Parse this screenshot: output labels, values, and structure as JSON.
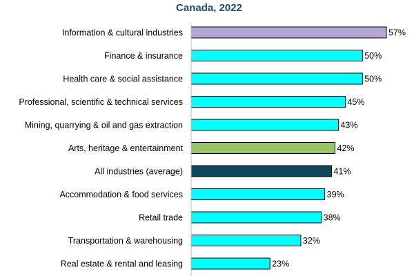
{
  "chart_data": {
    "type": "bar",
    "orientation": "horizontal",
    "title": "Canada, 2022",
    "categories": [
      "Information & cultural industries",
      "Finance & insurance",
      "Health care & social assistance",
      "Professional, scientific & technical services",
      "Mining, quarrying & oil and gas extraction",
      "Arts, heritage & entertainment",
      "All industries (average)",
      "Accommodation & food services",
      "Retail trade",
      "Transportation & warehousing",
      "Real estate & rental and leasing"
    ],
    "values": [
      57,
      50,
      50,
      45,
      43,
      42,
      41,
      39,
      38,
      32,
      23
    ],
    "value_labels": [
      "57%",
      "50%",
      "50%",
      "45%",
      "43%",
      "42%",
      "41%",
      "39%",
      "38%",
      "32%",
      "23%"
    ],
    "bar_colors": [
      "#b4a7d6",
      "#00ffff",
      "#00ffff",
      "#00ffff",
      "#00ffff",
      "#9bc466",
      "#0d4a5e",
      "#00ffff",
      "#00ffff",
      "#00ffff",
      "#00ffff"
    ],
    "xlim": [
      0,
      57
    ],
    "grid": false,
    "legend": "none"
  },
  "colors": {
    "title": "#1f4e63",
    "axis": "#bfbfbf",
    "highlight_industry": "#b4a7d6",
    "arts": "#9bc466",
    "average": "#0d4a5e",
    "default_bar": "#00ffff"
  }
}
